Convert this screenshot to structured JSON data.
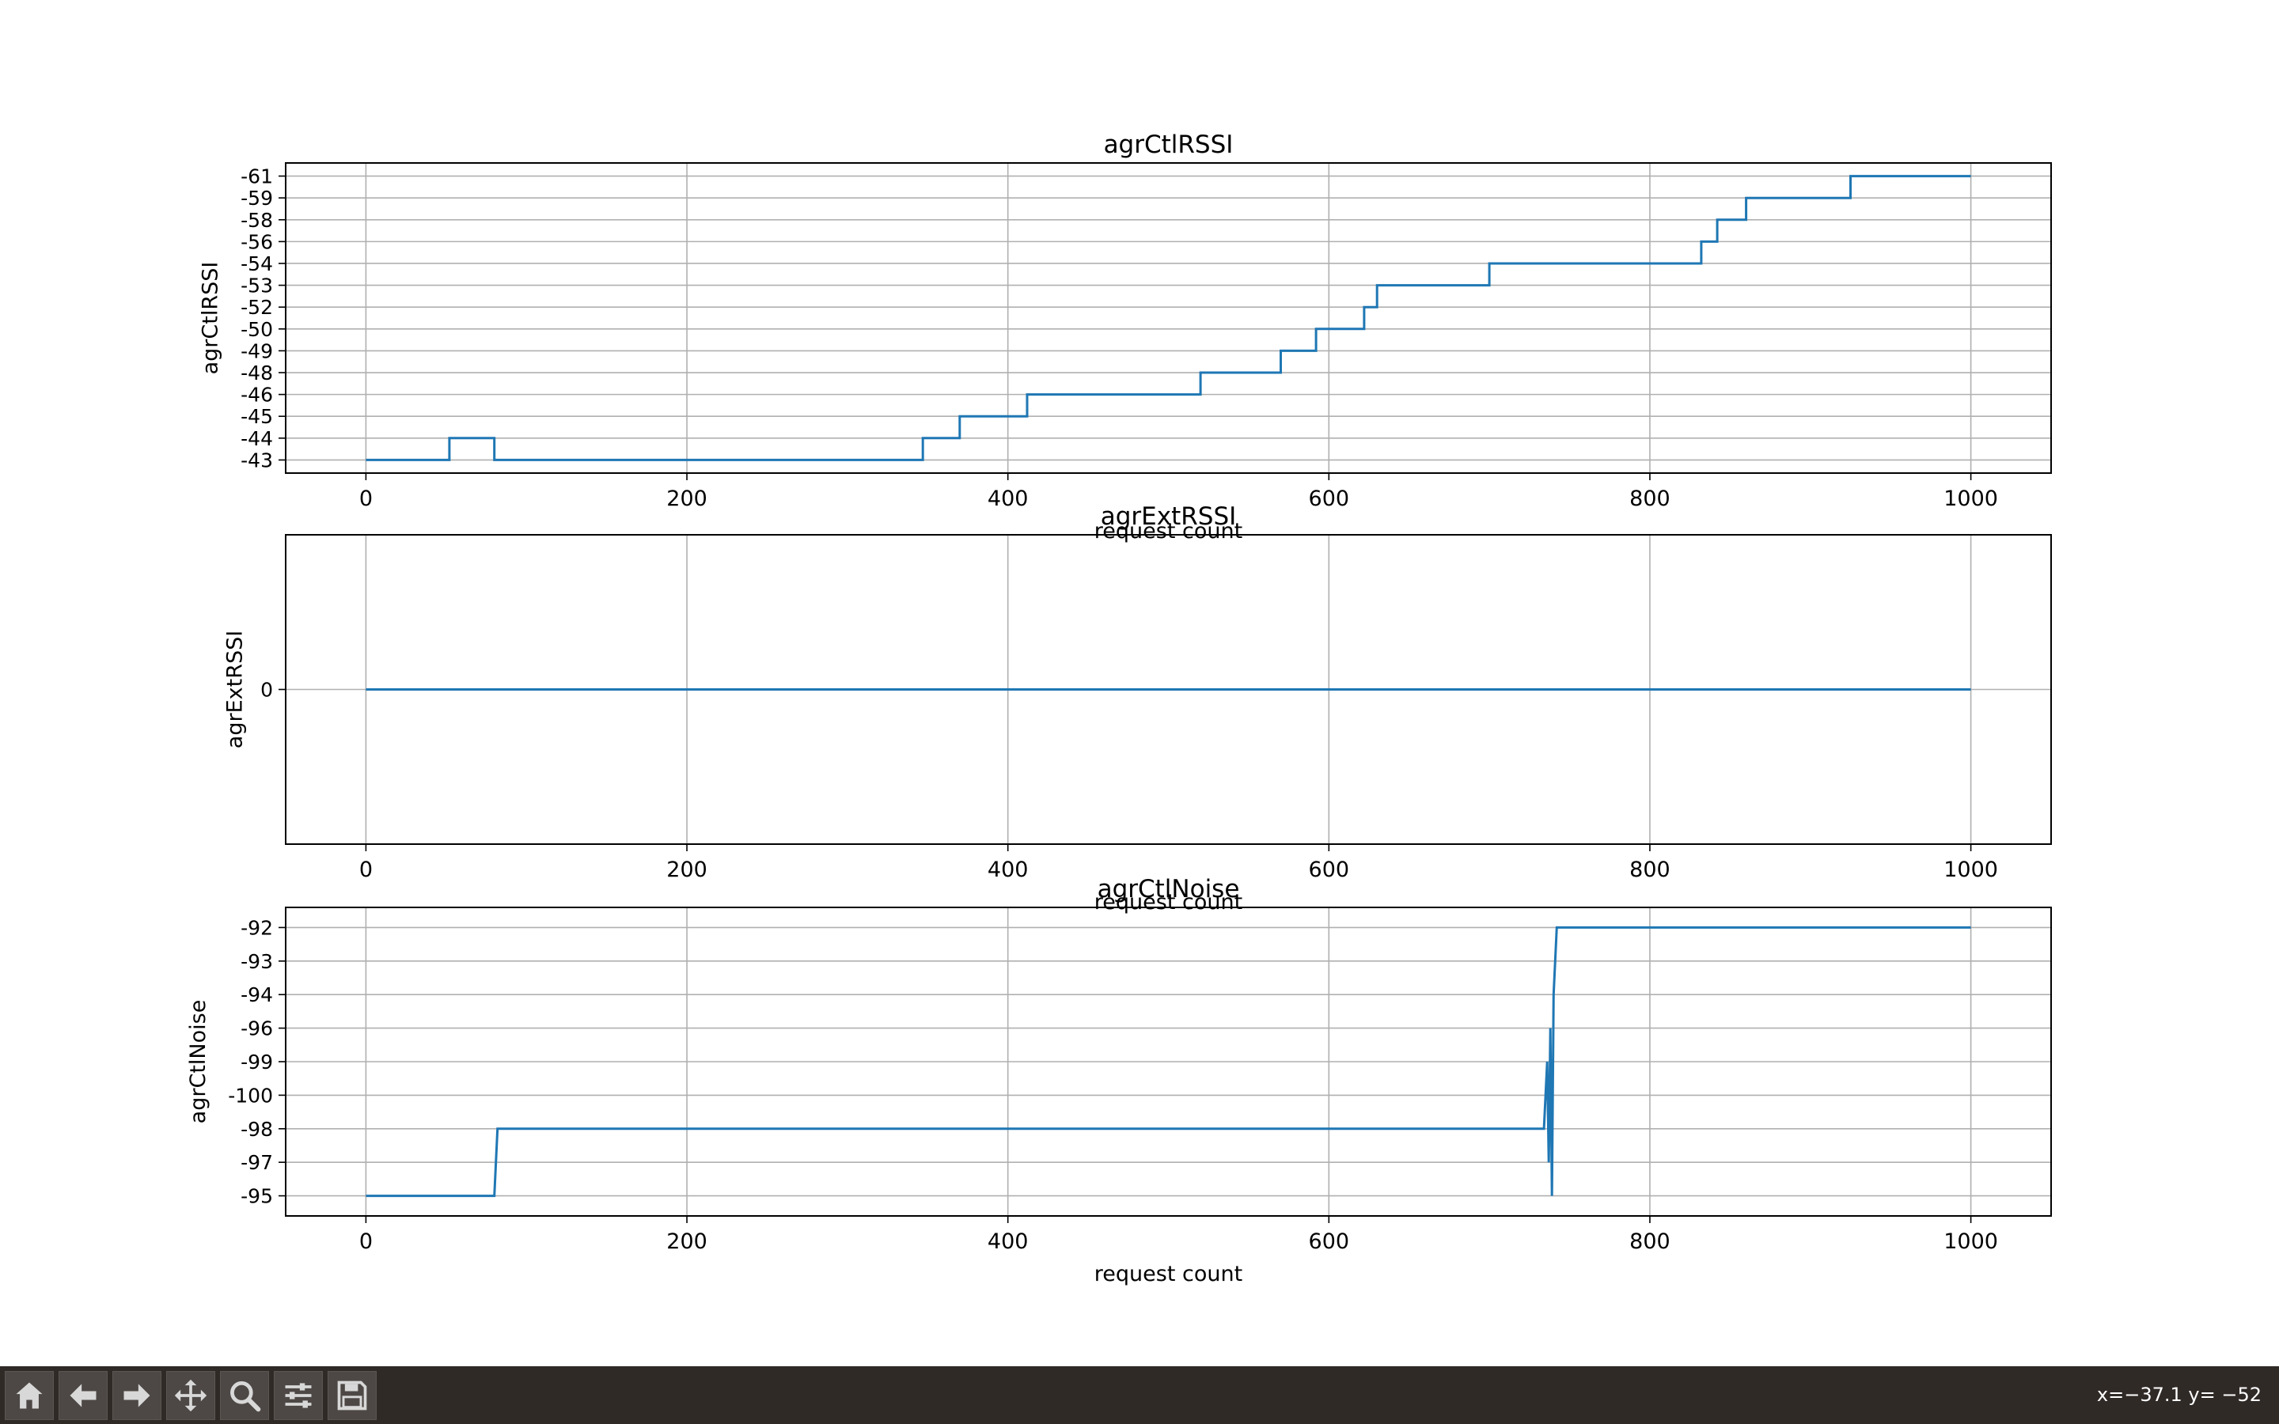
{
  "chart_data": [
    {
      "type": "line",
      "title": "agrCtlRSSI",
      "xlabel": "request count",
      "ylabel": "agrCtlRSSI",
      "xlim": [
        -50,
        1050
      ],
      "x_ticks": [
        0,
        200,
        400,
        600,
        800,
        1000
      ],
      "y_categories": [
        "-43",
        "-44",
        "-45",
        "-46",
        "-48",
        "-49",
        "-50",
        "-52",
        "-53",
        "-54",
        "-56",
        "-58",
        "-59",
        "-61"
      ],
      "grid": true,
      "color": "#1f77b4",
      "series": [
        {
          "x": [
            0,
            52,
            52,
            80,
            80,
            347,
            347,
            370,
            370,
            412,
            412,
            520,
            520,
            570,
            570,
            592,
            592,
            622,
            622,
            630,
            630,
            700,
            700,
            832,
            832,
            842,
            842,
            860,
            860,
            925,
            925,
            1000
          ],
          "y": [
            "-43",
            "-43",
            "-44",
            "-44",
            "-43",
            "-43",
            "-44",
            "-44",
            "-45",
            "-45",
            "-46",
            "-46",
            "-48",
            "-48",
            "-49",
            "-49",
            "-50",
            "-50",
            "-52",
            "-52",
            "-53",
            "-53",
            "-54",
            "-54",
            "-56",
            "-56",
            "-58",
            "-58",
            "-59",
            "-59",
            "-61",
            "-61"
          ]
        }
      ]
    },
    {
      "type": "line",
      "title": "agrExtRSSI",
      "xlabel": "request count",
      "ylabel": "agrExtRSSI",
      "xlim": [
        -50,
        1050
      ],
      "x_ticks": [
        0,
        200,
        400,
        600,
        800,
        1000
      ],
      "y_categories": [
        "0"
      ],
      "grid": true,
      "color": "#1f77b4",
      "series": [
        {
          "x": [
            0,
            1000
          ],
          "y": [
            "0",
            "0"
          ]
        }
      ]
    },
    {
      "type": "line",
      "title": "agrCtlNoise",
      "xlabel": "request count",
      "ylabel": "agrCtlNoise",
      "xlim": [
        -50,
        1050
      ],
      "x_ticks": [
        0,
        200,
        400,
        600,
        800,
        1000
      ],
      "y_categories": [
        "-95",
        "-97",
        "-98",
        "-100",
        "-99",
        "-96",
        "-94",
        "-93",
        "-92"
      ],
      "grid": true,
      "color": "#1f77b4",
      "series": [
        {
          "x": [
            0,
            80,
            82,
            734,
            736,
            737,
            738,
            739,
            740,
            742,
            1000
          ],
          "y": [
            "-95",
            "-95",
            "-98",
            "-98",
            "-99",
            "-97",
            "-96",
            "-95",
            "-94",
            "-92",
            "-92"
          ]
        }
      ]
    }
  ],
  "toolbar": {
    "buttons": [
      {
        "name": "home-button",
        "icon": "home-icon"
      },
      {
        "name": "back-button",
        "icon": "arrow-left-icon"
      },
      {
        "name": "forward-button",
        "icon": "arrow-right-icon"
      },
      {
        "name": "pan-button",
        "icon": "move-icon"
      },
      {
        "name": "zoom-button",
        "icon": "magnifier-icon"
      },
      {
        "name": "configure-subplots-button",
        "icon": "sliders-icon"
      },
      {
        "name": "save-button",
        "icon": "floppy-disk-icon"
      }
    ],
    "coords": "x=−37.1 y= −52"
  }
}
